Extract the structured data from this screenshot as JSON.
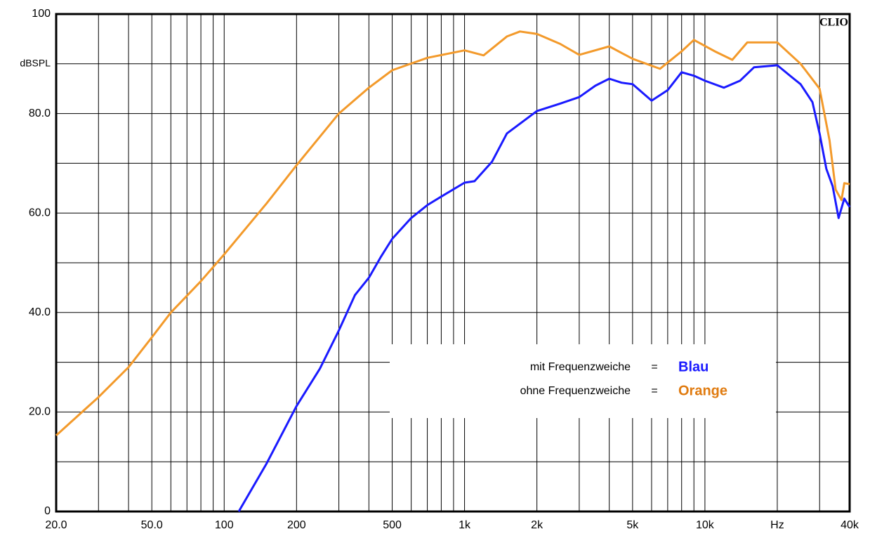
{
  "chart_data": {
    "type": "line",
    "xscale": "log",
    "xlim": [
      20,
      40000
    ],
    "ylim": [
      0,
      100
    ],
    "xticks": [
      {
        "value": 20,
        "label": "20.0"
      },
      {
        "value": 50,
        "label": "50.0"
      },
      100,
      200,
      500,
      {
        "value": 1000,
        "label": "1k"
      },
      {
        "value": 2000,
        "label": "2k"
      },
      {
        "value": 5000,
        "label": "5k"
      },
      {
        "value": 10000,
        "label": "10k"
      },
      {
        "value": 20000,
        "label": "Hz"
      },
      {
        "value": 40000,
        "label": "40k"
      }
    ],
    "x_minor_ticks": [
      30,
      40,
      60,
      70,
      80,
      90,
      300,
      400,
      600,
      700,
      800,
      900,
      3000,
      4000,
      6000,
      7000,
      8000,
      9000,
      30000
    ],
    "yticks": [
      0,
      {
        "value": 20,
        "label": "20.0"
      },
      {
        "value": 40,
        "label": "40.0"
      },
      {
        "value": 60,
        "label": "60.0"
      },
      {
        "value": 80,
        "label": "80.0"
      },
      100
    ],
    "y_minor_ticks": [
      10,
      30,
      50,
      70,
      90
    ],
    "ylabel": "dBSPL",
    "watermark": "CLIO",
    "grid": true,
    "legend_labels": [
      "mit Frequenzweiche",
      "ohne Frequenzweiche"
    ],
    "legend_separator": "=",
    "series": [
      {
        "name": "Blau",
        "color": "#1a1aff",
        "x": [
          115,
          150,
          200,
          250,
          300,
          350,
          400,
          450,
          500,
          600,
          700,
          800,
          1000,
          1100,
          1300,
          1500,
          2000,
          2500,
          3000,
          3500,
          4000,
          4500,
          5000,
          6000,
          7000,
          8000,
          9000,
          10000,
          12000,
          14000,
          16000,
          20000,
          23000,
          25000,
          28000,
          30000,
          32000,
          34000,
          36000,
          38000,
          40000
        ],
        "values": [
          0,
          9.6,
          21.2,
          28.7,
          36.4,
          43.5,
          47,
          51.3,
          54.8,
          59,
          61.6,
          63.3,
          66.1,
          66.4,
          70.3,
          76,
          80.5,
          82,
          83.3,
          85.6,
          87,
          86.2,
          85.9,
          82.6,
          84.7,
          88.3,
          87.6,
          86.6,
          85.2,
          86.6,
          89.3,
          89.7,
          87.3,
          85.9,
          82.3,
          76,
          68.9,
          65.4,
          59,
          62.9,
          61.2
        ]
      },
      {
        "name": "Orange",
        "color": "#f39a2b",
        "x": [
          20,
          30,
          40,
          50,
          60,
          80,
          100,
          150,
          200,
          300,
          400,
          500,
          700,
          1000,
          1200,
          1500,
          1700,
          2000,
          2500,
          3000,
          4000,
          5000,
          6500,
          8000,
          9000,
          11000,
          13000,
          15000,
          20000,
          25000,
          30000,
          33000,
          35000,
          37000,
          38000,
          40000
        ],
        "values": [
          15.3,
          23,
          29,
          35,
          40,
          46.3,
          51.7,
          61.9,
          69.6,
          80,
          85.2,
          88.7,
          91.2,
          92.7,
          91.7,
          95.5,
          96.5,
          96,
          94,
          91.8,
          93.5,
          91,
          89,
          92.5,
          94.8,
          92.5,
          90.8,
          94.3,
          94.3,
          90,
          85,
          74.6,
          64.7,
          62.6,
          66,
          65.8
        ]
      }
    ]
  }
}
